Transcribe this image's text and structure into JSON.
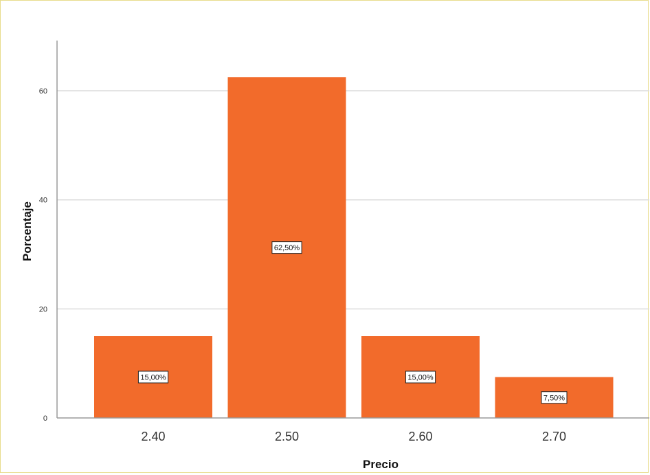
{
  "chart_data": {
    "type": "bar",
    "categories": [
      "2.40",
      "2.50",
      "2.60",
      "2.70"
    ],
    "values": [
      15.0,
      62.5,
      15.0,
      7.5
    ],
    "data_labels": [
      "15,00%",
      "62,50%",
      "15,00%",
      "7,50%"
    ],
    "title": "",
    "xlabel": "Precio",
    "ylabel": "Porcentaje",
    "ylim": [
      0,
      74
    ],
    "yticks": [
      0,
      20,
      40,
      60
    ],
    "grid": true,
    "bar_color": "#f26b2b"
  }
}
